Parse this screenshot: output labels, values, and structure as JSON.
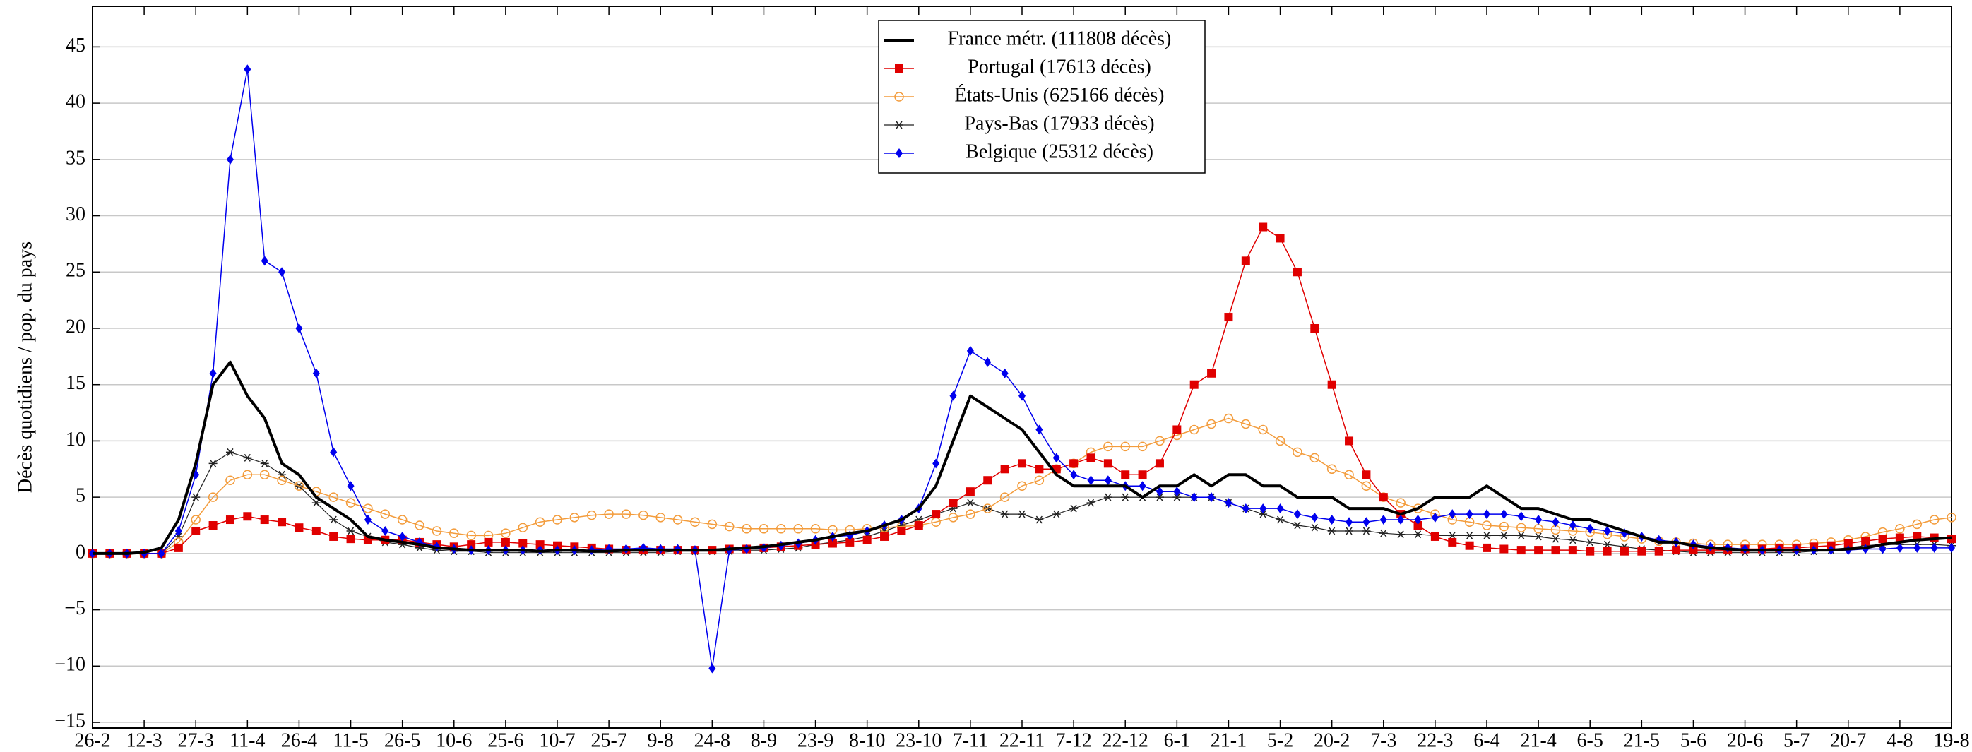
{
  "chart_data": {
    "type": "line",
    "y_label": "Décès quotidiens / pop. du pays",
    "x": [
      0,
      5,
      10,
      15,
      20,
      25,
      30,
      35,
      40,
      45,
      50,
      55,
      60,
      65,
      70,
      75,
      80,
      85,
      90,
      95,
      100,
      105,
      110,
      115,
      120,
      125,
      130,
      135,
      140,
      145,
      150,
      155,
      160,
      165,
      170,
      175,
      180,
      185,
      190,
      195,
      200,
      205,
      210,
      215,
      220,
      225,
      230,
      235,
      240,
      245,
      250,
      255,
      260,
      265,
      270,
      275,
      280,
      285,
      290,
      295,
      300,
      305,
      310,
      315,
      320,
      325,
      330,
      335,
      340,
      345,
      350,
      355,
      360,
      365,
      370,
      375,
      380,
      385,
      390,
      395,
      400,
      405,
      410,
      415,
      420,
      425,
      430,
      435,
      440,
      445,
      450,
      455,
      460,
      465,
      470,
      475,
      480,
      485,
      490,
      495,
      500,
      505,
      510,
      515,
      520,
      525,
      530,
      535,
      540
    ],
    "series": [
      {
        "name": "France métr. (111808 décès)",
        "color": "#000000",
        "marker": "none",
        "width": 4,
        "values": [
          0,
          0,
          0,
          0.1,
          0.5,
          3,
          8,
          15,
          17,
          14,
          12,
          8,
          7,
          5,
          4,
          3,
          1.5,
          1.2,
          1,
          0.8,
          0.5,
          0.4,
          0.3,
          0.3,
          0.3,
          0.3,
          0.2,
          0.3,
          0.3,
          0.2,
          0.2,
          0.3,
          0.3,
          0.3,
          0.3,
          0.3,
          0.3,
          0.4,
          0.5,
          0.6,
          0.8,
          1,
          1.2,
          1.5,
          1.8,
          2,
          2.5,
          3,
          4,
          6,
          10,
          14,
          13,
          12,
          11,
          9,
          7,
          6,
          6,
          6,
          6,
          5,
          6,
          6,
          7,
          6,
          7,
          7,
          6,
          6,
          5,
          5,
          5,
          4,
          4,
          4,
          3.5,
          4,
          5,
          5,
          5,
          6,
          5,
          4,
          4,
          3.5,
          3,
          3,
          2.5,
          2,
          1.5,
          1,
          1,
          0.7,
          0.5,
          0.4,
          0.3,
          0.3,
          0.3,
          0.3,
          0.3,
          0.3,
          0.4,
          0.5,
          0.8,
          1,
          1.2,
          1.3,
          1.4
        ]
      },
      {
        "name": "Portugal (17613 décès)",
        "color": "#e00000",
        "marker": "square",
        "width": 1.5,
        "values": [
          0,
          0,
          0,
          0,
          0,
          0.5,
          2,
          2.5,
          3,
          3.3,
          3,
          2.8,
          2.3,
          2,
          1.5,
          1.3,
          1.2,
          1.2,
          1.2,
          1,
          0.8,
          0.6,
          0.8,
          1,
          1,
          0.9,
          0.8,
          0.7,
          0.6,
          0.5,
          0.4,
          0.3,
          0.3,
          0.3,
          0.3,
          0.3,
          0.3,
          0.4,
          0.4,
          0.5,
          0.6,
          0.7,
          0.8,
          0.9,
          1,
          1.2,
          1.5,
          2,
          2.5,
          3.5,
          4.5,
          5.5,
          6.5,
          7.5,
          8,
          7.5,
          7.5,
          8,
          8.5,
          8,
          7,
          7,
          8,
          11,
          15,
          16,
          21,
          26,
          29,
          28,
          25,
          20,
          15,
          10,
          7,
          5,
          3.5,
          2.5,
          1.5,
          1,
          0.7,
          0.5,
          0.4,
          0.3,
          0.3,
          0.3,
          0.3,
          0.2,
          0.2,
          0.2,
          0.2,
          0.2,
          0.3,
          0.3,
          0.3,
          0.3,
          0.4,
          0.4,
          0.5,
          0.5,
          0.6,
          0.7,
          0.9,
          1.1,
          1.3,
          1.4,
          1.5,
          1.4,
          1.3
        ]
      },
      {
        "name": "États-Unis (625166 décès)",
        "color": "#f39c3c",
        "marker": "circle",
        "width": 1.5,
        "values": [
          0,
          0,
          0,
          0,
          0,
          1,
          3,
          5,
          6.5,
          7,
          7,
          6.5,
          6,
          5.5,
          5,
          4.5,
          4,
          3.5,
          3,
          2.5,
          2,
          1.8,
          1.6,
          1.6,
          1.8,
          2.3,
          2.8,
          3,
          3.2,
          3.4,
          3.5,
          3.5,
          3.4,
          3.2,
          3,
          2.8,
          2.6,
          2.4,
          2.2,
          2.2,
          2.2,
          2.2,
          2.2,
          2.1,
          2.1,
          2.2,
          2.3,
          2.4,
          2.5,
          2.8,
          3.2,
          3.5,
          4,
          5,
          6,
          6.5,
          7.5,
          8,
          9,
          9.5,
          9.5,
          9.5,
          10,
          10.5,
          11,
          11.5,
          12,
          11.5,
          11,
          10,
          9,
          8.5,
          7.5,
          7,
          6,
          5,
          4.5,
          4,
          3.5,
          3,
          2.8,
          2.5,
          2.4,
          2.3,
          2.2,
          2.1,
          2,
          1.9,
          1.7,
          1.5,
          1.3,
          1.1,
          1,
          0.9,
          0.8,
          0.8,
          0.8,
          0.8,
          0.8,
          0.8,
          0.9,
          1,
          1.2,
          1.5,
          1.9,
          2.2,
          2.6,
          3,
          3.2
        ]
      },
      {
        "name": "Pays-Bas (17933 décès)",
        "color": "#222222",
        "marker": "star",
        "width": 1.2,
        "values": [
          0,
          0,
          0,
          0,
          0,
          1.5,
          5,
          8,
          9,
          8.5,
          8,
          7,
          6,
          4.5,
          3,
          2,
          1.5,
          1,
          0.8,
          0.5,
          0.3,
          0.2,
          0.2,
          0.1,
          0.1,
          0.1,
          0.1,
          0.1,
          0.1,
          0.1,
          0.1,
          0.1,
          0.1,
          0.1,
          0.2,
          0.2,
          0.2,
          0.2,
          0.3,
          0.3,
          0.4,
          0.5,
          0.8,
          1,
          1.2,
          1.5,
          2,
          2.5,
          3,
          3.5,
          4,
          4.5,
          4,
          3.5,
          3.5,
          3,
          3.5,
          4,
          4.5,
          5,
          5,
          5,
          5,
          5,
          5,
          5,
          4.5,
          4,
          3.5,
          3,
          2.5,
          2.3,
          2,
          2,
          2,
          1.8,
          1.7,
          1.7,
          1.6,
          1.6,
          1.6,
          1.6,
          1.6,
          1.6,
          1.5,
          1.3,
          1.2,
          1,
          0.8,
          0.6,
          0.4,
          0.3,
          0.2,
          0.1,
          0.1,
          0.1,
          0.1,
          0.1,
          0.1,
          0.1,
          0.2,
          0.3,
          0.5,
          0.7,
          0.8,
          0.8,
          0.8,
          0.8,
          0.7
        ]
      },
      {
        "name": "Belgique (25312 décès)",
        "color": "#0000ee",
        "marker": "diamond",
        "width": 1.5,
        "values": [
          0,
          0,
          0,
          0,
          0,
          2,
          7,
          16,
          35,
          43,
          26,
          25,
          20,
          16,
          9,
          6,
          3,
          2,
          1.5,
          1,
          0.6,
          0.4,
          0.3,
          0.3,
          0.3,
          0.3,
          0.3,
          0.3,
          0.3,
          0.3,
          0.4,
          0.4,
          0.5,
          0.4,
          0.4,
          0.3,
          -10.2,
          0.3,
          0.4,
          0.5,
          0.7,
          0.9,
          1.2,
          1.5,
          1.6,
          2,
          2.5,
          3,
          4,
          8,
          14,
          18,
          17,
          16,
          14,
          11,
          8.5,
          7,
          6.5,
          6.5,
          6,
          6,
          5.5,
          5.5,
          5,
          5,
          4.5,
          4,
          4,
          4,
          3.5,
          3.2,
          3,
          2.8,
          2.8,
          3,
          3,
          3,
          3.2,
          3.5,
          3.5,
          3.5,
          3.5,
          3.3,
          3,
          2.8,
          2.5,
          2.2,
          2,
          1.8,
          1.5,
          1.2,
          1,
          0.8,
          0.6,
          0.5,
          0.4,
          0.3,
          0.3,
          0.3,
          0.3,
          0.3,
          0.3,
          0.4,
          0.4,
          0.5,
          0.5,
          0.5,
          0.5
        ]
      }
    ],
    "xlim": [
      0,
      540
    ],
    "xticks": [
      {
        "value": 0,
        "label": "26-2"
      },
      {
        "value": 15,
        "label": "12-3"
      },
      {
        "value": 30,
        "label": "27-3"
      },
      {
        "value": 45,
        "label": "11-4"
      },
      {
        "value": 60,
        "label": "26-4"
      },
      {
        "value": 75,
        "label": "11-5"
      },
      {
        "value": 90,
        "label": "26-5"
      },
      {
        "value": 105,
        "label": "10-6"
      },
      {
        "value": 120,
        "label": "25-6"
      },
      {
        "value": 135,
        "label": "10-7"
      },
      {
        "value": 150,
        "label": "25-7"
      },
      {
        "value": 165,
        "label": "9-8"
      },
      {
        "value": 180,
        "label": "24-8"
      },
      {
        "value": 195,
        "label": "8-9"
      },
      {
        "value": 210,
        "label": "23-9"
      },
      {
        "value": 225,
        "label": "8-10"
      },
      {
        "value": 240,
        "label": "23-10"
      },
      {
        "value": 255,
        "label": "7-11"
      },
      {
        "value": 270,
        "label": "22-11"
      },
      {
        "value": 285,
        "label": "7-12"
      },
      {
        "value": 300,
        "label": "22-12"
      },
      {
        "value": 315,
        "label": "6-1"
      },
      {
        "value": 330,
        "label": "21-1"
      },
      {
        "value": 345,
        "label": "5-2"
      },
      {
        "value": 360,
        "label": "20-2"
      },
      {
        "value": 375,
        "label": "7-3"
      },
      {
        "value": 390,
        "label": "22-3"
      },
      {
        "value": 405,
        "label": "6-4"
      },
      {
        "value": 420,
        "label": "21-4"
      },
      {
        "value": 435,
        "label": "6-5"
      },
      {
        "value": 450,
        "label": "21-5"
      },
      {
        "value": 465,
        "label": "5-6"
      },
      {
        "value": 480,
        "label": "20-6"
      },
      {
        "value": 495,
        "label": "5-7"
      },
      {
        "value": 510,
        "label": "20-7"
      },
      {
        "value": 525,
        "label": "4-8"
      },
      {
        "value": 540,
        "label": "19-8"
      }
    ],
    "ylim": [
      -15.5,
      48.6
    ],
    "yticks": [
      {
        "value": -15,
        "label": "−15"
      },
      {
        "value": -10,
        "label": "−10"
      },
      {
        "value": -5,
        "label": "−5"
      },
      0,
      5,
      10,
      15,
      20,
      25,
      30,
      35,
      40,
      45
    ],
    "grid": true,
    "legend": "top-center"
  }
}
